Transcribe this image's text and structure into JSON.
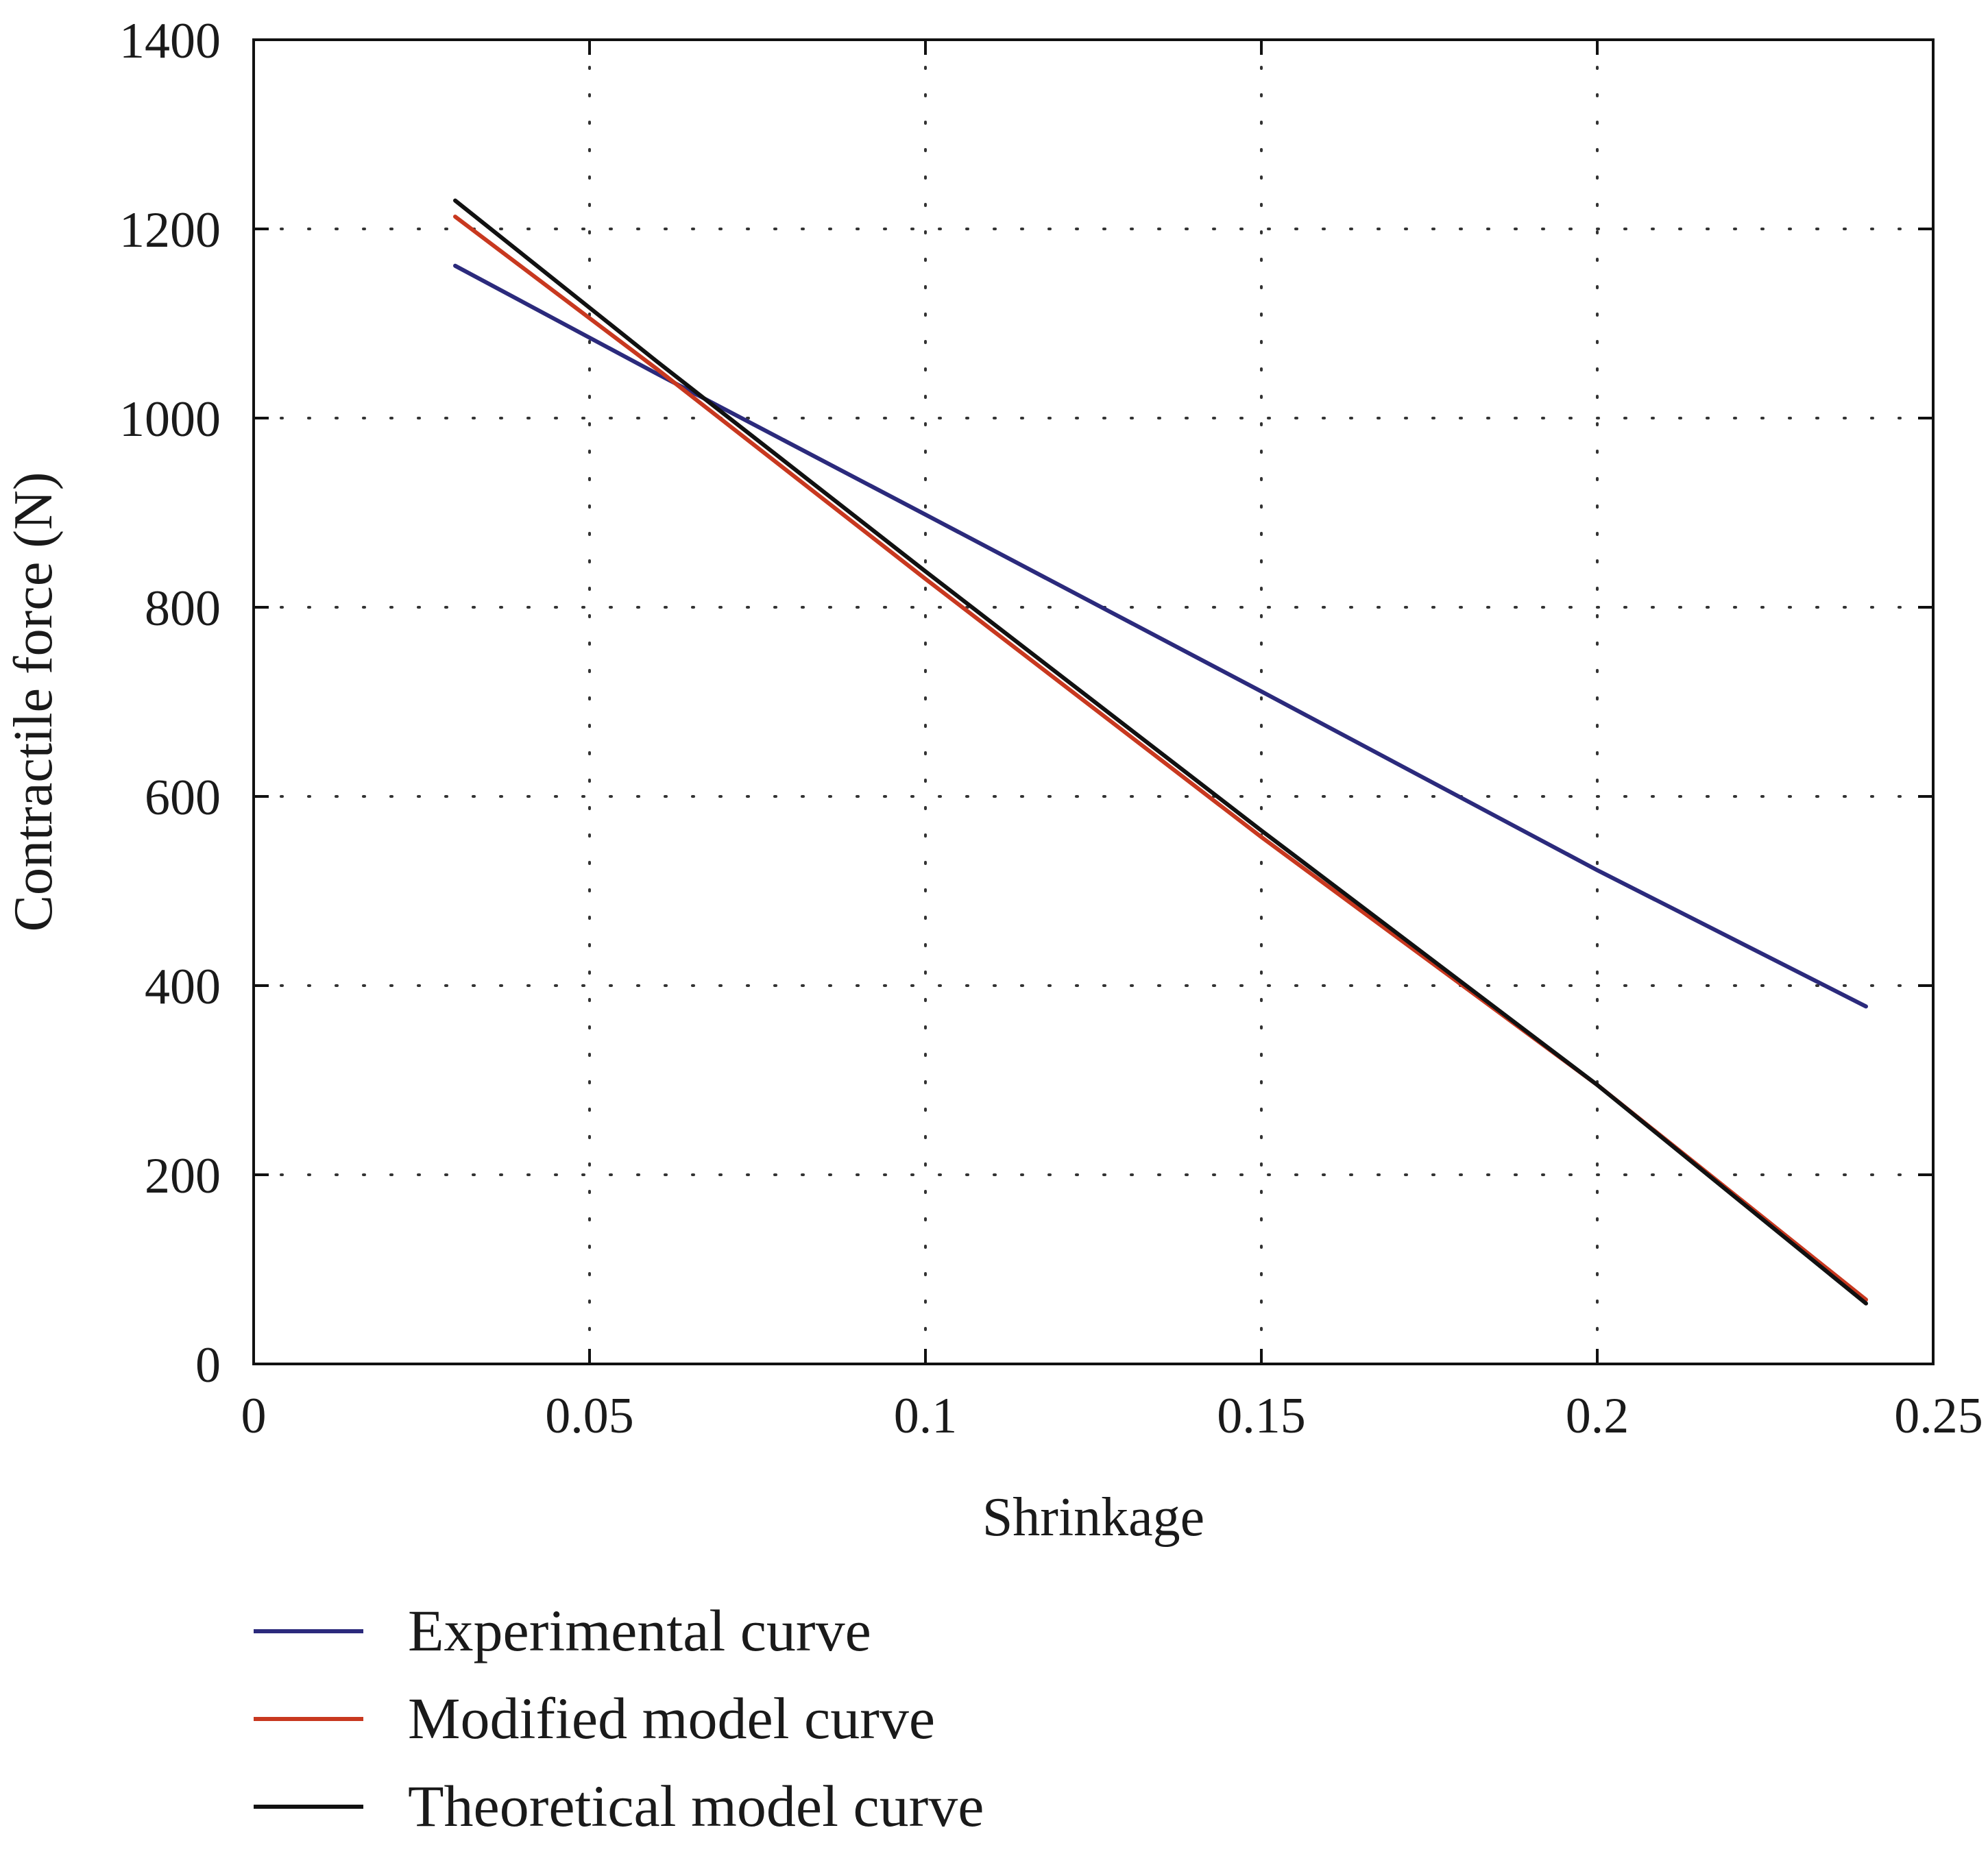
{
  "chart_data": {
    "type": "line",
    "xlabel": "Shrinkage",
    "ylabel": "Contractile force (N)",
    "xlim": [
      0,
      0.25
    ],
    "ylim": [
      0,
      1400
    ],
    "xticks": [
      0,
      0.05,
      0.1,
      0.15,
      0.2,
      0.25
    ],
    "xtick_labels": [
      "0",
      "0.05",
      "0.1",
      "0.15",
      "0.2",
      "0.25"
    ],
    "yticks": [
      0,
      200,
      400,
      600,
      800,
      1000,
      1200,
      1400
    ],
    "ytick_labels": [
      "0",
      "200",
      "400",
      "600",
      "800",
      "1000",
      "1200",
      "1400"
    ],
    "grid": true,
    "legend_position": "bottom",
    "series": [
      {
        "name": "Experimental curve",
        "color": "#2b2a7c",
        "x": [
          0.03,
          0.06,
          0.1,
          0.15,
          0.2,
          0.24
        ],
        "y": [
          1161,
          1047,
          898,
          711,
          522,
          378
        ]
      },
      {
        "name": "Modified model curve",
        "color": "#c8381f",
        "x": [
          0.03,
          0.06,
          0.1,
          0.15,
          0.2,
          0.24
        ],
        "y": [
          1213,
          1052,
          830,
          557,
          295,
          68
        ]
      },
      {
        "name": "Theoretical model curve",
        "color": "#111111",
        "x": [
          0.03,
          0.06,
          0.1,
          0.15,
          0.2,
          0.24
        ],
        "y": [
          1230,
          1060,
          838,
          564,
          295,
          64
        ]
      }
    ]
  }
}
